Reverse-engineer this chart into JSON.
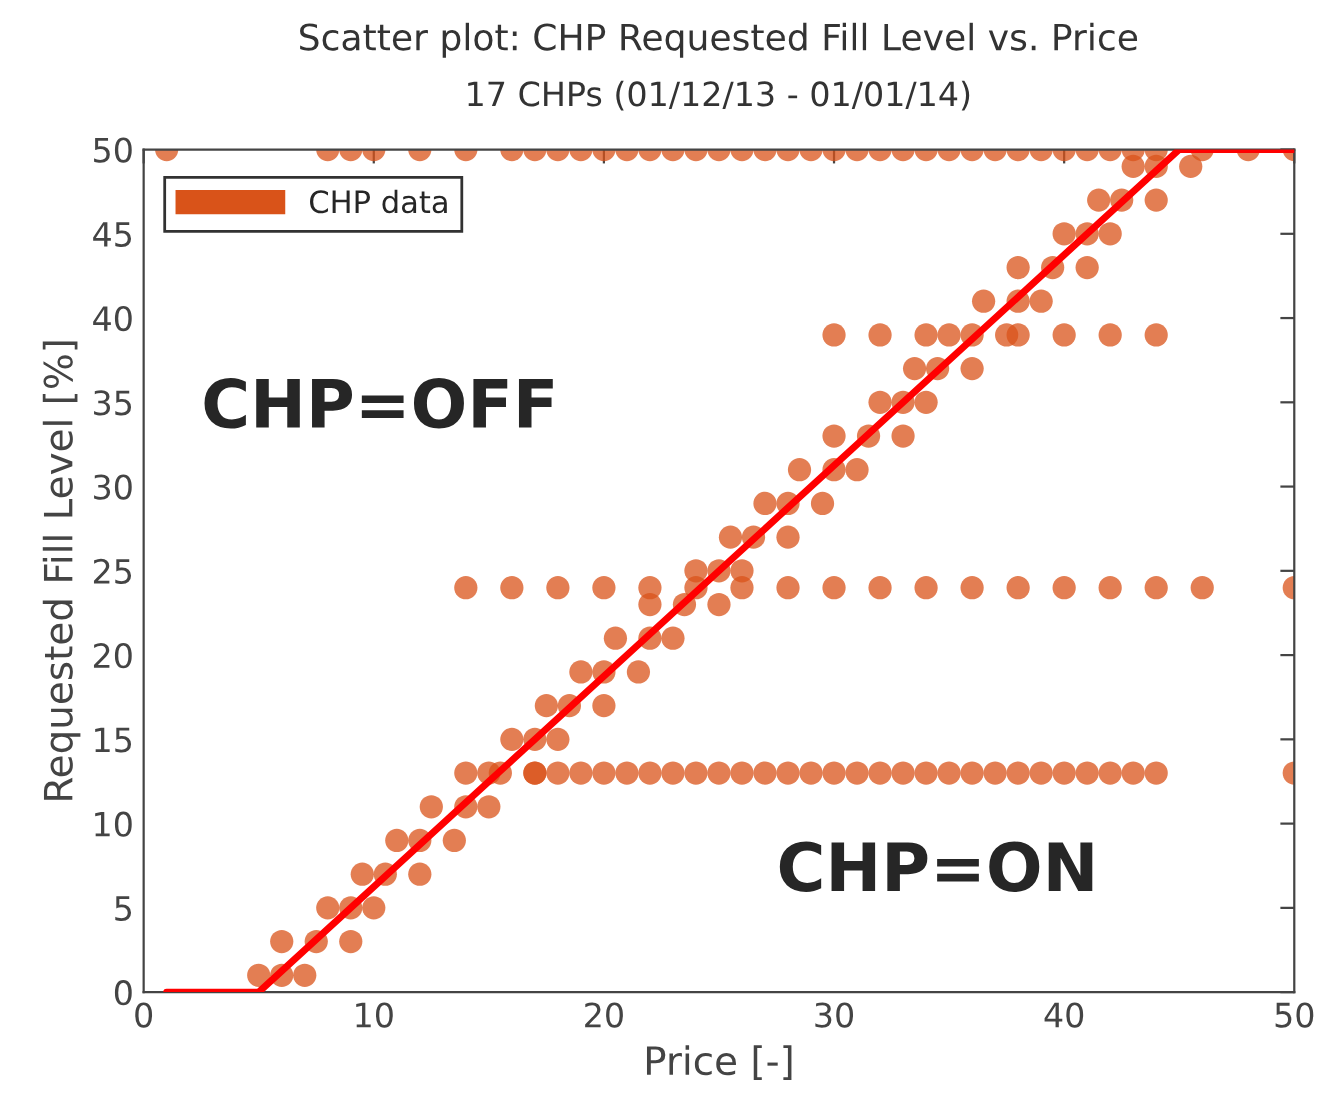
{
  "chart_data": {
    "type": "scatter",
    "title": "Scatter plot: CHP Requested Fill Level vs. Price",
    "subtitle": "17 CHPs (01/12/13 - 01/01/14)",
    "xlabel": "Price [-]",
    "ylabel": "Requested Fill Level [%]",
    "xlim": [
      0,
      50
    ],
    "xticks": [
      0,
      10,
      20,
      30,
      40,
      50
    ],
    "ylim": [
      0,
      50
    ],
    "yticks": [
      0,
      5,
      10,
      15,
      20,
      25,
      30,
      35,
      40,
      45,
      50
    ],
    "grid": false,
    "legend": "top left",
    "marker": "circle",
    "annotations": [
      "CHP=OFF",
      "CHP=ON"
    ],
    "series": [
      {
        "name": "CHP data",
        "color": "#d95319",
        "x": [
          1,
          8,
          9,
          10,
          12,
          14,
          16,
          17,
          18,
          19,
          20,
          21,
          22,
          23,
          24,
          25,
          26,
          27,
          28,
          29,
          30,
          31,
          32,
          33,
          34,
          35,
          36,
          37,
          38,
          39,
          40,
          41,
          42,
          43,
          44,
          46,
          48,
          50,
          14,
          16,
          18,
          20,
          22,
          24,
          26,
          28,
          30,
          32,
          34,
          36,
          38,
          40,
          42,
          44,
          46,
          50,
          15,
          17,
          18,
          19,
          20,
          21,
          22,
          23,
          24,
          25,
          26,
          27,
          28,
          29,
          30,
          31,
          32,
          33,
          34,
          35,
          36,
          37,
          38,
          39,
          40,
          41,
          42,
          43,
          44,
          50,
          30,
          32,
          34,
          38,
          40,
          42,
          44,
          5,
          6,
          7,
          6,
          7.5,
          9,
          8,
          9,
          10,
          9.5,
          10.5,
          12,
          11,
          12,
          13.5,
          12.5,
          14,
          15,
          14,
          15.5,
          17,
          16,
          17,
          18,
          17.5,
          18.5,
          20,
          19,
          20,
          21.5,
          20.5,
          22,
          23,
          22,
          23.5,
          25,
          24,
          25,
          26,
          25.5,
          26.5,
          28,
          27,
          28,
          29.5,
          28.5,
          30,
          31,
          30,
          31.5,
          33,
          32,
          33,
          34,
          33.5,
          34.5,
          36,
          35,
          36,
          37.5,
          36.5,
          38,
          39,
          38,
          39.5,
          41,
          40,
          41,
          42,
          41.5,
          42.5,
          44,
          43,
          44,
          45.5
        ],
        "values": [
          50,
          50,
          50,
          50,
          50,
          50,
          50,
          50,
          50,
          50,
          50,
          50,
          50,
          50,
          50,
          50,
          50,
          50,
          50,
          50,
          50,
          50,
          50,
          50,
          50,
          50,
          50,
          50,
          50,
          50,
          50,
          50,
          50,
          50,
          50,
          50,
          50,
          50,
          24,
          24,
          24,
          24,
          24,
          24,
          24,
          24,
          24,
          24,
          24,
          24,
          24,
          24,
          24,
          24,
          24,
          24,
          13,
          13,
          13,
          13,
          13,
          13,
          13,
          13,
          13,
          13,
          13,
          13,
          13,
          13,
          13,
          13,
          13,
          13,
          13,
          13,
          13,
          13,
          13,
          13,
          13,
          13,
          13,
          13,
          13,
          13,
          39,
          39,
          39,
          39,
          39,
          39,
          39,
          1,
          1,
          1,
          3,
          3,
          3,
          5,
          5,
          5,
          7,
          7,
          7,
          9,
          9,
          9,
          11,
          11,
          11,
          13,
          13,
          13,
          15,
          15,
          15,
          17,
          17,
          17,
          19,
          19,
          19,
          21,
          21,
          21,
          23,
          23,
          23,
          25,
          25,
          25,
          27,
          27,
          27,
          29,
          29,
          29,
          31,
          31,
          31,
          33,
          33,
          33,
          35,
          35,
          35,
          37,
          37,
          37,
          39,
          39,
          39,
          41,
          41,
          41,
          43,
          43,
          43,
          45,
          45,
          45,
          47,
          47,
          47,
          49,
          49,
          49
        ]
      },
      {
        "type": "line",
        "color": "#ff0000",
        "marker": "none",
        "x": [
          1,
          5,
          45,
          50
        ],
        "values": [
          0,
          0,
          50,
          50
        ]
      }
    ]
  }
}
